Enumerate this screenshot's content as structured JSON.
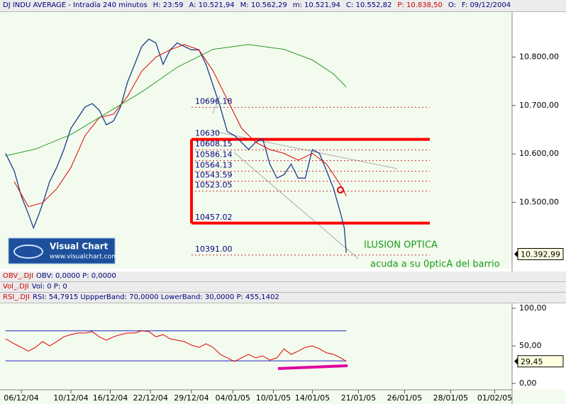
{
  "chart_data": [
    {
      "type": "line",
      "title": "DJ INDU AVERAGE - Intradía 240 minutos",
      "stats": [
        {
          "text": "H: 23:59",
          "color": "#000080"
        },
        {
          "text": "A: 10.521,94",
          "color": "#000080"
        },
        {
          "text": "M: 10.562,29",
          "color": "#000080"
        },
        {
          "text": "m: 10.521,94",
          "color": "#000080"
        },
        {
          "text": "C: 10.552,82",
          "color": "#000080"
        },
        {
          "text": "P: 10.838,50",
          "color": "#d00000"
        },
        {
          "text": "O:",
          "color": "#000080"
        },
        {
          "text": "F: 09/12/2004",
          "color": "#000080"
        }
      ],
      "xlim": [
        0,
        130
      ],
      "ylim": [
        10363,
        10893
      ],
      "yticks": [
        {
          "value": 10500,
          "label": "10.500,00"
        },
        {
          "value": 10600,
          "label": "10.600,00"
        },
        {
          "value": 10700,
          "label": "10.700,00"
        },
        {
          "value": 10800,
          "label": "10.800,00"
        }
      ],
      "series": [
        {
          "color": "#1a3c8a",
          "width": 1.3,
          "x": [
            1.4,
            3.6,
            5.4,
            7.2,
            8.5,
            9.9,
            11.2,
            12.6,
            14.4,
            16.2,
            18.0,
            19.8,
            21.6,
            23.4,
            25.2,
            27.0,
            28.8,
            30.6,
            32.4,
            34.2,
            36.0,
            37.8,
            39.6,
            41.4,
            43.2,
            45.0,
            46.8,
            48.6,
            50.5,
            52.3,
            54.1,
            55.9,
            57.7,
            59.5,
            61.3,
            63.1,
            64.9,
            66.7,
            68.5,
            70.3,
            72.1,
            73.9,
            75.7,
            77.5,
            79.3,
            81.1,
            82.9,
            84.7,
            86.5,
            87.4,
            87.9
          ],
          "values": [
            10601,
            10565,
            10513,
            10476,
            10447,
            10476,
            10506,
            10543,
            10572,
            10609,
            10653,
            10675,
            10697,
            10704,
            10690,
            10660,
            10668,
            10697,
            10749,
            10785,
            10822,
            10837,
            10829,
            10785,
            10815,
            10829,
            10822,
            10815,
            10815,
            10785,
            10741,
            10697,
            10646,
            10638,
            10624,
            10609,
            10624,
            10631,
            10579,
            10550,
            10557,
            10579,
            10550,
            10550,
            10609,
            10601,
            10565,
            10528,
            10476,
            10447,
            10396
          ]
        },
        {
          "color": "#e00000",
          "width": 1,
          "x": [
            3.6,
            7.2,
            10.8,
            14.4,
            18.0,
            21.6,
            25.2,
            28.8,
            32.4,
            36.0,
            39.6,
            43.2,
            46.8,
            50.5,
            54.1,
            57.7,
            61.3,
            64.9,
            68.5,
            72.1,
            75.7,
            79.3,
            82.9,
            86.5,
            87.9
          ],
          "values": [
            10543,
            10491,
            10499,
            10528,
            10572,
            10638,
            10675,
            10682,
            10719,
            10771,
            10800,
            10815,
            10826,
            10815,
            10771,
            10712,
            10653,
            10624,
            10609,
            10601,
            10587,
            10601,
            10579,
            10535,
            10513
          ]
        },
        {
          "color": "#2a9a2a",
          "width": 1,
          "x": [
            1.4,
            9.0,
            18.0,
            27.0,
            36.0,
            45.0,
            54.1,
            63.1,
            72.1,
            79.3,
            84.7,
            87.9
          ],
          "values": [
            10596,
            10610,
            10640,
            10684,
            10728,
            10779,
            10816,
            10826,
            10816,
            10794,
            10765,
            10738
          ]
        }
      ],
      "levels": [
        {
          "value": 10696.18,
          "style": "dotted"
        },
        {
          "value": 10630,
          "style": "box"
        },
        {
          "value": 10608.15,
          "style": "dotted"
        },
        {
          "value": 10586.14,
          "style": "dotted"
        },
        {
          "value": 10564.13,
          "style": "dotted"
        },
        {
          "value": 10543.59,
          "style": "dotted"
        },
        {
          "value": 10523.05,
          "style": "dotted"
        },
        {
          "value": 10457.02,
          "style": "box"
        },
        {
          "value": 10391,
          "label": "10391.00",
          "style": "dotted"
        }
      ],
      "last": {
        "value": 10392.99,
        "label": "10.392,99"
      },
      "annotations": [
        "ILUSION OPTICA",
        "acuda a su 0pticA del barrio"
      ],
      "logo": {
        "title": "Visual Chart",
        "url": "www.visualchart.com"
      }
    },
    {
      "type": "line",
      "panels": [
        {
          "name": "OBV_.DJI",
          "text": "OBV: 0,0000  P: 0,0000"
        },
        {
          "name": "Vol_.DJI",
          "text": "Vol: 0  P: 0"
        }
      ],
      "title": "RSI_.DJI",
      "subtitle": "RSI: 54,7915  UppperBand: 70,0000  LowerBand: 30,0000  P: 455,1402",
      "xlim": [
        0,
        130
      ],
      "ylim": [
        -8.5,
        107.5
      ],
      "yticks": [
        {
          "value": 0,
          "label": "0,00"
        },
        {
          "value": 50,
          "label": "50,00"
        },
        {
          "value": 100,
          "label": "100,00"
        }
      ],
      "bands": [
        70,
        30
      ],
      "xticks": [
        {
          "value": 5.4,
          "label": "06/12/04"
        },
        {
          "value": 18,
          "label": "10/12/04"
        },
        {
          "value": 28,
          "label": "16/12/04"
        },
        {
          "value": 38.2,
          "label": "22/12/04"
        },
        {
          "value": 48.6,
          "label": "29/12/04"
        },
        {
          "value": 59.1,
          "label": "04/01/05"
        },
        {
          "value": 69.4,
          "label": "10/01/05"
        },
        {
          "value": 79.3,
          "label": "14/01/05"
        },
        {
          "value": 91,
          "label": "21/01/05"
        },
        {
          "value": 102.7,
          "label": "26/01/05"
        },
        {
          "value": 114.4,
          "label": "28/01/05"
        },
        {
          "value": 125.6,
          "label": "01/02/05"
        }
      ],
      "series": [
        {
          "color": "#e00000",
          "width": 1,
          "x": [
            1.4,
            3.6,
            5.4,
            7.2,
            9.0,
            10.8,
            12.6,
            14.4,
            16.2,
            18.0,
            19.8,
            21.6,
            23.4,
            25.2,
            27.0,
            28.8,
            30.6,
            32.4,
            34.2,
            36.0,
            37.8,
            39.6,
            41.4,
            43.2,
            45.0,
            46.8,
            48.6,
            50.5,
            52.3,
            54.1,
            55.9,
            57.7,
            59.5,
            61.3,
            63.1,
            64.9,
            66.7,
            68.5,
            70.3,
            72.1,
            73.9,
            75.7,
            77.5,
            79.3,
            81.1,
            82.9,
            84.7,
            86.5,
            87.9
          ],
          "values": [
            59.4,
            52.8,
            48,
            43,
            48,
            55.7,
            50,
            55.7,
            62,
            65,
            67,
            67,
            69,
            62,
            57.5,
            62,
            65,
            67,
            67,
            70,
            69,
            62,
            65,
            59.4,
            57.5,
            55.7,
            51,
            48,
            52.8,
            48,
            38.7,
            34,
            29.2,
            34,
            38.7,
            34,
            36.8,
            31,
            34,
            46,
            38.7,
            43,
            48,
            50,
            46,
            40.6,
            38.7,
            34,
            29.45
          ]
        }
      ],
      "last": {
        "value": 29.45,
        "label": "29,45"
      }
    }
  ]
}
